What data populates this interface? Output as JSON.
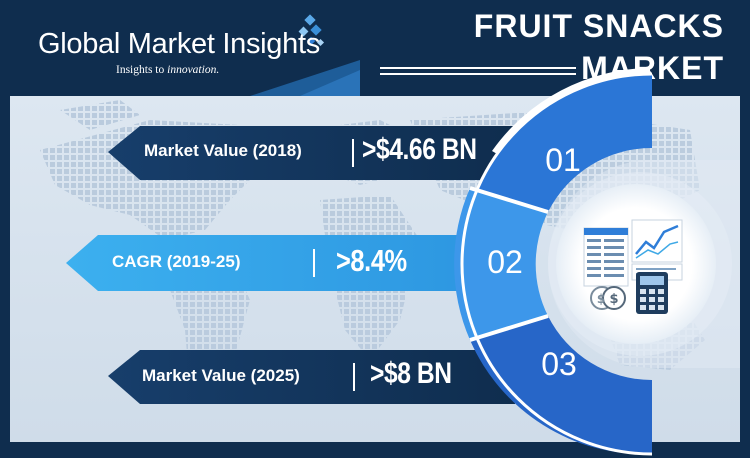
{
  "brand": {
    "name": "Global Market Insights",
    "tagline_prefix": "Insights to ",
    "tagline_emphasis": "innovation."
  },
  "title": {
    "line1": "FRUIT SNACKS",
    "line2": "MARKET"
  },
  "stats": [
    {
      "number": "01",
      "label": "Market Value (2018)",
      "value": ">$4.66 BN"
    },
    {
      "number": "02",
      "label": "CAGR (2019-25)",
      "value": ">8.4%"
    },
    {
      "number": "03",
      "label": "Market Value (2025)",
      "value": ">$8 BN"
    }
  ],
  "colors": {
    "navy": "#0f2d4e",
    "accent_blue": "#2f7ed8",
    "light_blue": "#3fa9e6",
    "map_bg": "#d6e2ee"
  },
  "icons": [
    "logo-diamond-icon",
    "spreadsheet-chart-icon",
    "calculator-icon",
    "coins-icon"
  ]
}
